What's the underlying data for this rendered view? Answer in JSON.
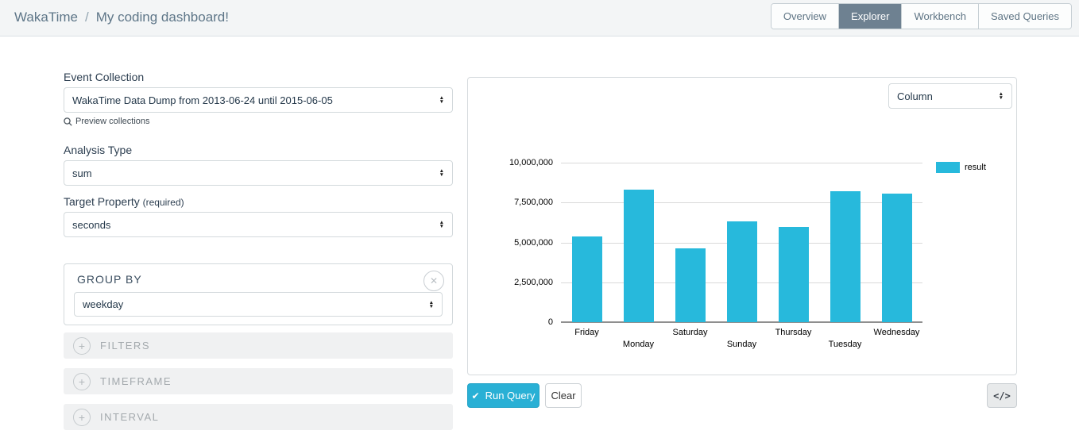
{
  "header": {
    "breadcrumb": {
      "app": "WakaTime",
      "separator": "/",
      "page": "My coding dashboard!"
    },
    "tabs": [
      {
        "label": "Overview"
      },
      {
        "label": "Explorer"
      },
      {
        "label": "Workbench"
      },
      {
        "label": "Saved Queries"
      }
    ]
  },
  "query_builder": {
    "event_collection": {
      "label": "Event Collection",
      "value": "WakaTime Data Dump from 2013-06-24 until 2015-06-05"
    },
    "preview_link": "Preview collections",
    "analysis_type": {
      "label": "Analysis Type",
      "value": "sum"
    },
    "target_property": {
      "label": "Target Property",
      "required_note": "(required)",
      "value": "seconds"
    },
    "group_by": {
      "label": "GROUP BY",
      "value": "weekday",
      "close_icon": "✕"
    },
    "collapsed_sections": [
      {
        "label": "FILTERS"
      },
      {
        "label": "TIMEFRAME"
      },
      {
        "label": "INTERVAL"
      }
    ]
  },
  "chart_panel": {
    "chart_type_select": "Column",
    "run_label": "Run Query",
    "run_check": "✔",
    "clear_label": "Clear",
    "embed_label": "</>"
  },
  "chart_data": {
    "type": "bar",
    "title": "",
    "xlabel": "",
    "ylabel": "",
    "categories": [
      "Friday",
      "Monday",
      "Saturday",
      "Sunday",
      "Thursday",
      "Tuesday",
      "Wednesday"
    ],
    "series": [
      {
        "name": "result",
        "values": [
          5350000,
          8300000,
          4650000,
          6300000,
          5950000,
          8200000,
          8050000
        ]
      }
    ],
    "ylim": [
      0,
      10000000
    ],
    "yticks": [
      0,
      2500000,
      5000000,
      7500000,
      10000000
    ],
    "bar_color": "#27b9dc",
    "grid": true,
    "legend_position": "right-top",
    "x_labels_staggered": true
  },
  "colors": {
    "accent_cyan": "#27b9dc",
    "active_tab": "#6e8191",
    "header_bg": "#f3f5f6",
    "label_dark": "#2c3e50"
  }
}
